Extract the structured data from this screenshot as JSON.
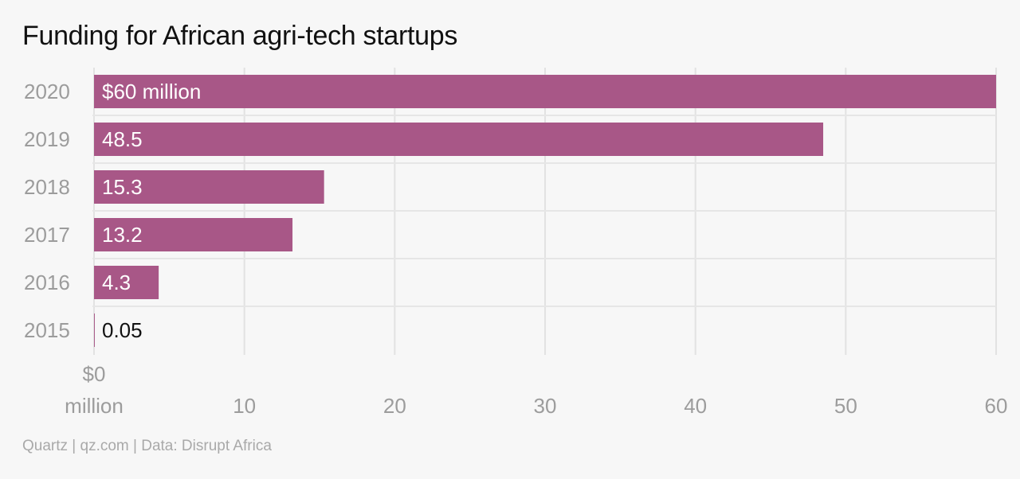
{
  "chart_data": {
    "type": "bar",
    "orientation": "horizontal",
    "title": "Funding for African agri-tech startups",
    "categories": [
      "2020",
      "2019",
      "2018",
      "2017",
      "2016",
      "2015"
    ],
    "values": [
      60,
      48.5,
      15.3,
      13.2,
      4.3,
      0.05
    ],
    "data_labels": [
      "$60 million",
      "48.5",
      "15.3",
      "13.2",
      "4.3",
      "0.05"
    ],
    "xlim": [
      0,
      60
    ],
    "x_ticks": [
      0,
      10,
      20,
      30,
      40,
      50,
      60
    ],
    "x_tick_labels": [
      [
        "$0",
        "million"
      ],
      [
        "10"
      ],
      [
        "20"
      ],
      [
        "30"
      ],
      [
        "40"
      ],
      [
        "50"
      ],
      [
        "60"
      ]
    ],
    "grid": true,
    "colors": {
      "bar": "#a85787",
      "label_inside": "#ffffff",
      "label_outside": "#111111"
    }
  },
  "source": "Quartz | qz.com | Data: Disrupt Africa"
}
